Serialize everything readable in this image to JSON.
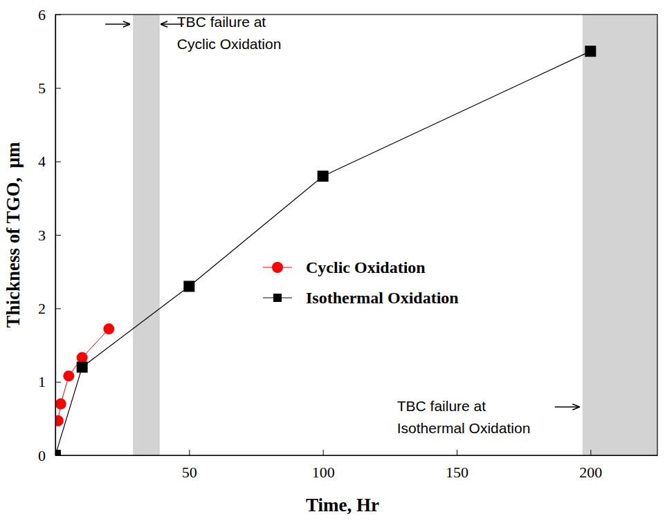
{
  "chart_data": {
    "type": "line",
    "x_label": "Time, Hr",
    "y_label": "Thickness of TGO,  μm",
    "xlim": [
      0,
      225
    ],
    "xticks": [
      50,
      100,
      150,
      200
    ],
    "ylim": [
      0,
      6
    ],
    "yticks": [
      0,
      1,
      2,
      3,
      4,
      5,
      6
    ],
    "legend": "center",
    "series": [
      {
        "name": "Cyclic Oxidation",
        "color": "#ff0000",
        "marker": "circle",
        "line_style": "solid",
        "x": [
          1,
          2,
          5,
          10,
          20
        ],
        "values": [
          0.47,
          0.7,
          1.08,
          1.33,
          1.72
        ]
      },
      {
        "name": "Isothermal Oxidation",
        "color": "#000000",
        "marker": "square",
        "line_style": "solid",
        "x": [
          0,
          10,
          50,
          100,
          200
        ],
        "values": [
          0,
          1.2,
          2.3,
          3.8,
          5.5
        ]
      }
    ],
    "shaded_regions": [
      {
        "xlim": [
          29,
          39
        ],
        "color": "#d3d3d3",
        "label": [
          "TBC failure at",
          "Cyclic Oxidation"
        ]
      },
      {
        "xlim": [
          197,
          225
        ],
        "color": "#d3d3d3",
        "label": [
          "TBC failure at",
          "Isothermal Oxidation"
        ]
      }
    ]
  }
}
